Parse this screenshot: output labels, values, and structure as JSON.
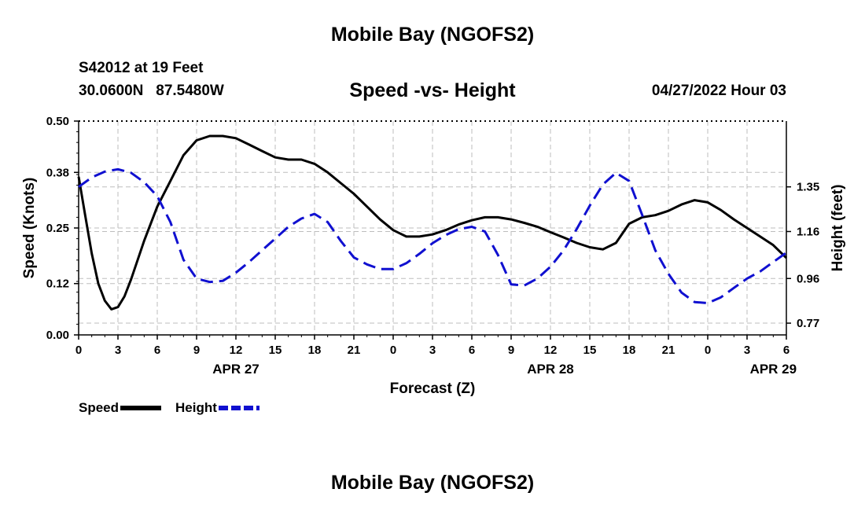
{
  "header": {
    "title": "Mobile Bay (NGOFS2)",
    "station": "S42012 at 19 Feet",
    "lat": "30.0600N",
    "lon": "87.5480W",
    "subtitle": "Speed -vs- Height",
    "timestamp": "04/27/2022 Hour 03"
  },
  "footer": {
    "title": "Mobile Bay (NGOFS2)"
  },
  "legend": {
    "speed_label": "Speed",
    "height_label": "Height"
  },
  "colors": {
    "speed": "#000000",
    "height": "#1010d0",
    "grid": "#bdbdbd"
  },
  "chart_data": {
    "type": "line",
    "title": "Speed -vs- Height",
    "xlabel": "Forecast (Z)",
    "ylabel": "Speed (Knots)",
    "y2label": "Height (feet)",
    "xlim": [
      0,
      54
    ],
    "ylim": [
      0,
      0.5
    ],
    "y2lim": [
      0.72,
      1.63
    ],
    "x_ticks": [
      0,
      3,
      6,
      9,
      12,
      15,
      18,
      21,
      24,
      27,
      30,
      33,
      36,
      39,
      42,
      45,
      48,
      51,
      54
    ],
    "x_tick_labels": [
      "0",
      "3",
      "6",
      "9",
      "12",
      "15",
      "18",
      "21",
      "0",
      "3",
      "6",
      "9",
      "12",
      "15",
      "18",
      "21",
      "0",
      "3",
      "6"
    ],
    "date_labels": [
      {
        "x": 12,
        "label": "APR 27"
      },
      {
        "x": 36,
        "label": "APR 28"
      },
      {
        "x": 53,
        "label": "APR 29"
      }
    ],
    "y_ticks": [
      0.0,
      0.12,
      0.25,
      0.38,
      0.5
    ],
    "y_tick_labels": [
      "0.00",
      "0.12",
      "0.25",
      "0.38",
      "0.50"
    ],
    "y2_ticks": [
      0.77,
      0.96,
      1.16,
      1.35
    ],
    "y2_tick_labels": [
      "0.77",
      "0.96",
      "1.16",
      "1.35"
    ],
    "grid": true,
    "series": [
      {
        "name": "Speed",
        "axis": "left",
        "style": "solid",
        "x": [
          0,
          0.5,
          1,
          1.5,
          2,
          2.5,
          3,
          3.5,
          4,
          5,
          6,
          7,
          8,
          9,
          10,
          11,
          12,
          13,
          14,
          15,
          16,
          17,
          18,
          19,
          20,
          21,
          22,
          23,
          24,
          25,
          26,
          27,
          28,
          29,
          30,
          31,
          32,
          33,
          34,
          35,
          36,
          37,
          38,
          39,
          40,
          41,
          42,
          43,
          44,
          45,
          46,
          47,
          48,
          49,
          50,
          51,
          52,
          53,
          54
        ],
        "values": [
          0.37,
          0.28,
          0.19,
          0.12,
          0.08,
          0.06,
          0.065,
          0.09,
          0.13,
          0.22,
          0.3,
          0.36,
          0.42,
          0.455,
          0.465,
          0.465,
          0.46,
          0.445,
          0.43,
          0.415,
          0.41,
          0.41,
          0.4,
          0.38,
          0.355,
          0.33,
          0.3,
          0.27,
          0.245,
          0.23,
          0.23,
          0.235,
          0.245,
          0.258,
          0.268,
          0.275,
          0.275,
          0.27,
          0.262,
          0.253,
          0.24,
          0.228,
          0.215,
          0.205,
          0.2,
          0.215,
          0.26,
          0.275,
          0.28,
          0.29,
          0.305,
          0.315,
          0.31,
          0.292,
          0.27,
          0.25,
          0.23,
          0.21,
          0.18
        ]
      },
      {
        "name": "Height",
        "axis": "right",
        "style": "dashed",
        "x": [
          0,
          1,
          2,
          3,
          4,
          5,
          6,
          7,
          8,
          9,
          10,
          11,
          12,
          13,
          14,
          15,
          16,
          17,
          18,
          19,
          20,
          21,
          22,
          23,
          24,
          25,
          26,
          27,
          28,
          29,
          30,
          31,
          32,
          33,
          34,
          35,
          36,
          37,
          38,
          39,
          40,
          41,
          42,
          43,
          44,
          45,
          46,
          47,
          48,
          49,
          50,
          51,
          52,
          53,
          54
        ],
        "values": [
          1.35,
          1.39,
          1.415,
          1.425,
          1.41,
          1.37,
          1.31,
          1.2,
          1.04,
          0.96,
          0.945,
          0.95,
          0.985,
          1.03,
          1.08,
          1.13,
          1.18,
          1.215,
          1.235,
          1.2,
          1.12,
          1.05,
          1.02,
          1.0,
          1.0,
          1.025,
          1.065,
          1.11,
          1.145,
          1.17,
          1.18,
          1.16,
          1.06,
          0.935,
          0.93,
          0.96,
          1.01,
          1.08,
          1.17,
          1.27,
          1.36,
          1.41,
          1.375,
          1.23,
          1.08,
          0.98,
          0.9,
          0.86,
          0.855,
          0.88,
          0.92,
          0.96,
          0.99,
          1.03,
          1.07
        ]
      }
    ]
  }
}
